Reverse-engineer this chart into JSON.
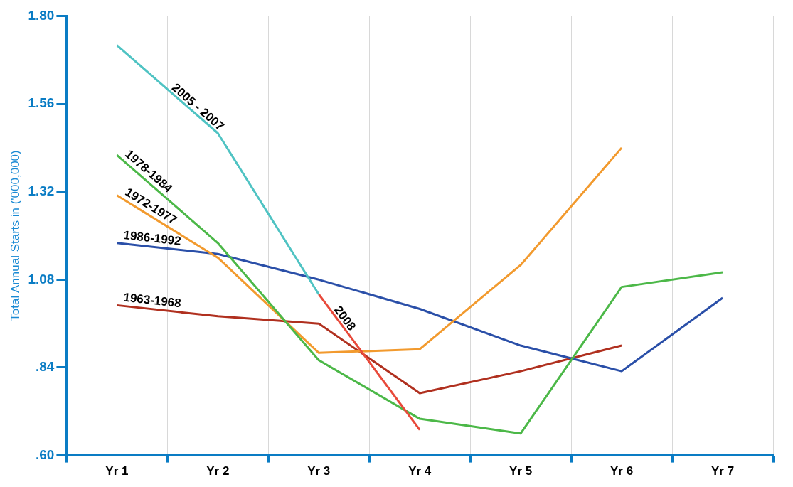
{
  "chart_data": {
    "type": "line",
    "ylabel": "Total Annual Starts in ('000,000)",
    "categories": [
      "Yr 1",
      "Yr 2",
      "Yr 3",
      "Yr 4",
      "Yr 5",
      "Yr 6",
      "Yr 7"
    ],
    "series": [
      {
        "name": "2005 - 2007",
        "color": "#4fc3c3",
        "values": [
          1.72,
          1.48,
          1.04,
          null,
          null,
          null,
          null
        ]
      },
      {
        "name": "2008",
        "color": "#e8493a",
        "values": [
          null,
          null,
          1.04,
          0.67,
          null,
          null,
          null
        ]
      },
      {
        "name": "1978-1984",
        "color": "#4cb848",
        "values": [
          1.42,
          1.18,
          0.86,
          0.7,
          0.66,
          1.06,
          1.1
        ]
      },
      {
        "name": "1972-1977",
        "color": "#f29a2e",
        "values": [
          1.31,
          1.14,
          0.88,
          0.89,
          1.12,
          1.44,
          null
        ]
      },
      {
        "name": "1986-1992",
        "color": "#2a4fa8",
        "values": [
          1.18,
          1.15,
          1.08,
          1.0,
          0.9,
          0.83,
          1.03
        ]
      },
      {
        "name": "1963-1968",
        "color": "#b0301f",
        "values": [
          1.01,
          0.98,
          0.96,
          0.77,
          0.83,
          0.9,
          null
        ]
      }
    ],
    "ylim": [
      0.6,
      1.8
    ],
    "yticks": [
      {
        "value": 0.6,
        "label": ".60"
      },
      {
        "value": 0.84,
        "label": ".84"
      },
      1.08,
      1.32,
      1.56,
      {
        "value": 1.8,
        "label": "1.80"
      }
    ],
    "grid": "x",
    "legend": false,
    "marker": "none",
    "line_style": "solid"
  }
}
